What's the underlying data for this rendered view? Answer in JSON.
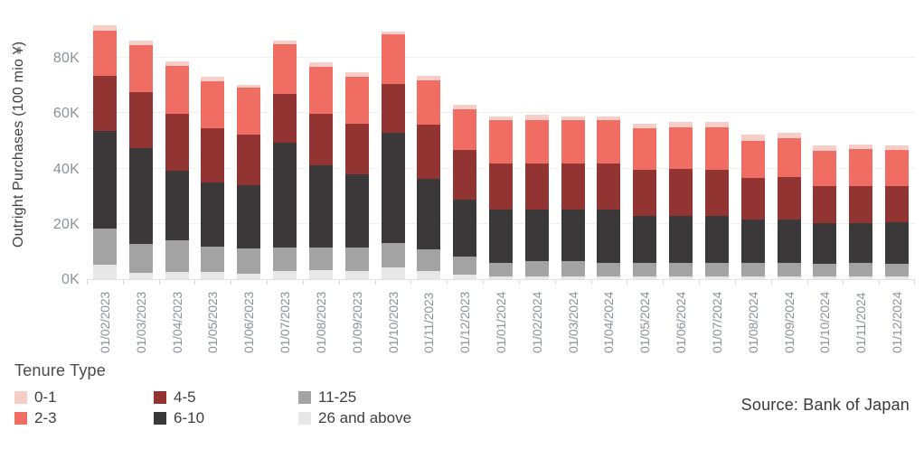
{
  "chart": {
    "y_axis_title": "Outright Purchases (100 mio ¥)",
    "legend_title": "Tenure Type",
    "source": "Source: Bank of Japan"
  },
  "palette": {
    "axis_text": "#8c929b",
    "title_text": "#414141",
    "legend_text": "#3f3f3f",
    "grid_line": "#f1f1f1",
    "axis_line": "#e2e2e2",
    "background": "#ffffff"
  },
  "chart_data": {
    "type": "bar",
    "stacked": true,
    "title": "",
    "xlabel": "",
    "ylabel": "Outright Purchases (100 mio ¥)",
    "legend_title": "Tenure Type",
    "legend_position": "bottom-left",
    "grid": "horizontal",
    "ylim": [
      0,
      98000
    ],
    "y_ticks": [
      {
        "label": "0K",
        "value": 0
      },
      {
        "label": "20K",
        "value": 20000
      },
      {
        "label": "40K",
        "value": 40000
      },
      {
        "label": "60K",
        "value": 60000
      },
      {
        "label": "80K",
        "value": 80000
      }
    ],
    "categories": [
      "01/02/2023",
      "01/03/2023",
      "01/04/2023",
      "01/05/2023",
      "01/06/2023",
      "01/07/2023",
      "01/08/2023",
      "01/09/2023",
      "01/10/2023",
      "01/11/2023",
      "01/12/2023",
      "01/01/2024",
      "01/02/2024",
      "01/03/2024",
      "01/04/2024",
      "01/05/2024",
      "01/06/2024",
      "01/07/2024",
      "01/08/2024",
      "01/09/2024",
      "01/10/2024",
      "01/11/2024",
      "01/12/2024"
    ],
    "series": [
      {
        "name": "0-1",
        "color": "#f8cdc7",
        "values": [
          2000,
          1700,
          1800,
          1600,
          1000,
          1300,
          1600,
          1600,
          1100,
          1600,
          1600,
          1500,
          1900,
          1500,
          1300,
          1400,
          1900,
          2000,
          2200,
          1900,
          1800,
          1700,
          1700
        ]
      },
      {
        "name": "2-3",
        "color": "#ef6d63",
        "values": [
          16400,
          17200,
          17300,
          17100,
          17200,
          17800,
          16900,
          16900,
          17700,
          16100,
          14900,
          15600,
          15600,
          15600,
          15600,
          15200,
          15300,
          15300,
          13600,
          14000,
          12900,
          13300,
          13100
        ]
      },
      {
        "name": "4-5",
        "color": "#923431",
        "values": [
          20000,
          20200,
          20500,
          19400,
          18000,
          17700,
          18900,
          18200,
          17700,
          19600,
          17800,
          16700,
          16700,
          16700,
          16700,
          16500,
          16700,
          16700,
          14900,
          15300,
          13400,
          13300,
          13100
        ]
      },
      {
        "name": "6-10",
        "color": "#3a3839",
        "values": [
          35100,
          34600,
          25200,
          23100,
          23100,
          38000,
          29500,
          26700,
          39900,
          25300,
          20500,
          19100,
          18500,
          18500,
          19100,
          17200,
          17200,
          16900,
          15800,
          15600,
          14700,
          14500,
          15000
        ]
      },
      {
        "name": "11-25",
        "color": "#a4a3a3",
        "values": [
          13100,
          10500,
          11400,
          9400,
          9000,
          8400,
          8200,
          8400,
          8700,
          7900,
          6800,
          5100,
          5500,
          5500,
          4900,
          4700,
          4900,
          5100,
          4900,
          5100,
          4600,
          4900,
          4500
        ]
      },
      {
        "name": "26 and above",
        "color": "#e8e7e7",
        "values": [
          5300,
          2200,
          2600,
          2500,
          2000,
          2900,
          3300,
          2900,
          4400,
          2900,
          1500,
          900,
          1100,
          1100,
          1100,
          1100,
          900,
          900,
          900,
          900,
          900,
          900,
          1000
        ]
      }
    ]
  }
}
